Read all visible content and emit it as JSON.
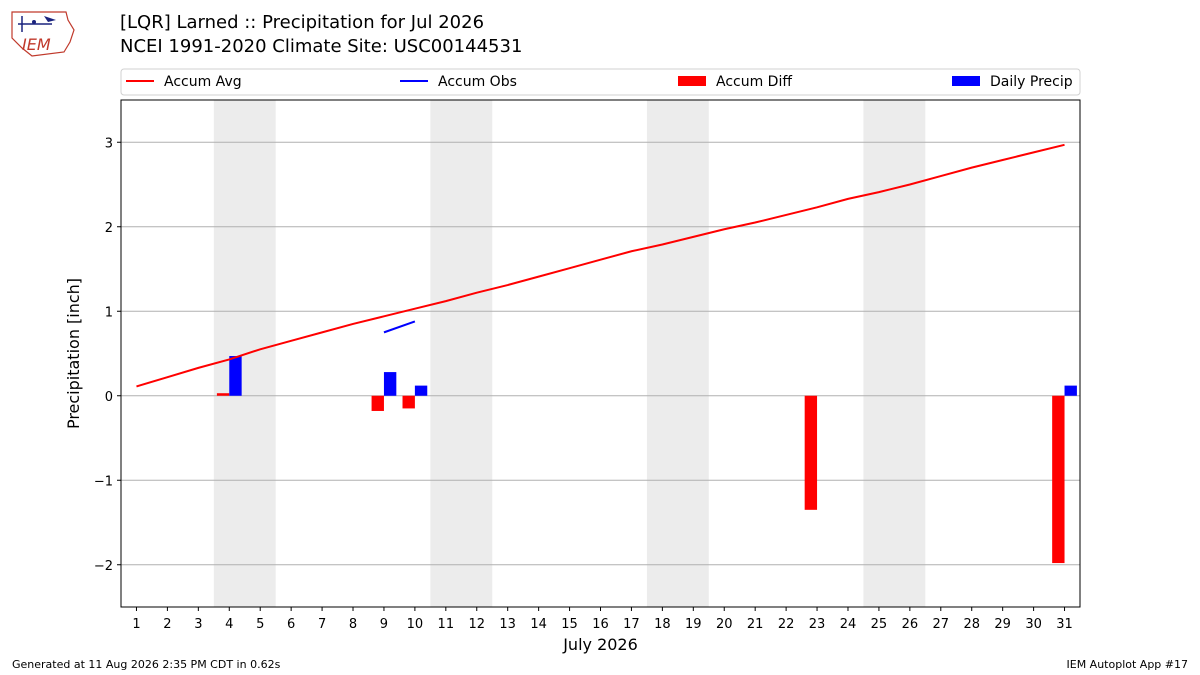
{
  "logo": {
    "text": "IEM"
  },
  "header": {
    "title": "[LQR] Larned :: Precipitation for Jul 2026",
    "subtitle": "NCEI 1991-2020 Climate Site: USC00144531"
  },
  "footer": {
    "left": "Generated at 11 Aug 2026 2:35 PM CDT in 0.62s",
    "right": "IEM Autoplot App #17"
  },
  "colors": {
    "avg": "#ff0000",
    "obs": "#0000ff",
    "diff": "#ff0000",
    "daily": "#0000ff",
    "weekend": "#ececec",
    "grid": "#b0b0b0"
  },
  "chart_data": {
    "type": "bar",
    "xlabel": "July 2026",
    "ylabel": "Precipitation [inch]",
    "xlim": [
      0.5,
      31.5
    ],
    "ylim": [
      -2.5,
      3.5
    ],
    "grid": "horizontal",
    "legend_position": "top",
    "x_ticks": [
      1,
      2,
      3,
      4,
      5,
      6,
      7,
      8,
      9,
      10,
      11,
      12,
      13,
      14,
      15,
      16,
      17,
      18,
      19,
      20,
      21,
      22,
      23,
      24,
      25,
      26,
      27,
      28,
      29,
      30,
      31
    ],
    "y_ticks": [
      {
        "value": -2,
        "label": "−2"
      },
      {
        "value": -1,
        "label": "−1"
      },
      {
        "value": 0,
        "label": "0"
      },
      {
        "value": 1,
        "label": "1"
      },
      {
        "value": 2,
        "label": "2"
      },
      {
        "value": 3,
        "label": "3"
      }
    ],
    "weekend_bands": [
      [
        3.5,
        5.5
      ],
      [
        10.5,
        12.5
      ],
      [
        17.5,
        19.5
      ],
      [
        24.5,
        26.5
      ]
    ],
    "legend": [
      "Accum Avg",
      "Accum Obs",
      "Accum Diff",
      "Daily Precip"
    ],
    "series": [
      {
        "name": "Accum Avg",
        "kind": "line",
        "x": [
          1,
          2,
          3,
          4,
          5,
          6,
          7,
          8,
          9,
          10,
          11,
          12,
          13,
          14,
          15,
          16,
          17,
          18,
          19,
          20,
          21,
          22,
          23,
          24,
          25,
          26,
          27,
          28,
          29,
          30,
          31
        ],
        "values": [
          0.11,
          0.22,
          0.33,
          0.43,
          0.55,
          0.65,
          0.75,
          0.85,
          0.94,
          1.03,
          1.12,
          1.22,
          1.31,
          1.41,
          1.51,
          1.61,
          1.71,
          1.79,
          1.88,
          1.97,
          2.05,
          2.14,
          2.23,
          2.33,
          2.41,
          2.5,
          2.6,
          2.7,
          2.79,
          2.88,
          2.97
        ]
      },
      {
        "name": "Accum Obs",
        "kind": "line",
        "x": [
          9,
          10
        ],
        "values": [
          0.75,
          0.88
        ]
      },
      {
        "name": "Accum Diff",
        "kind": "bar",
        "x": [
          4,
          9,
          10,
          23,
          31
        ],
        "values": [
          0.03,
          -0.18,
          -0.15,
          -1.35,
          -1.98
        ]
      },
      {
        "name": "Daily Precip",
        "kind": "bar",
        "x": [
          4,
          9,
          10,
          31
        ],
        "values": [
          0.47,
          0.28,
          0.12,
          0.12
        ]
      }
    ]
  }
}
